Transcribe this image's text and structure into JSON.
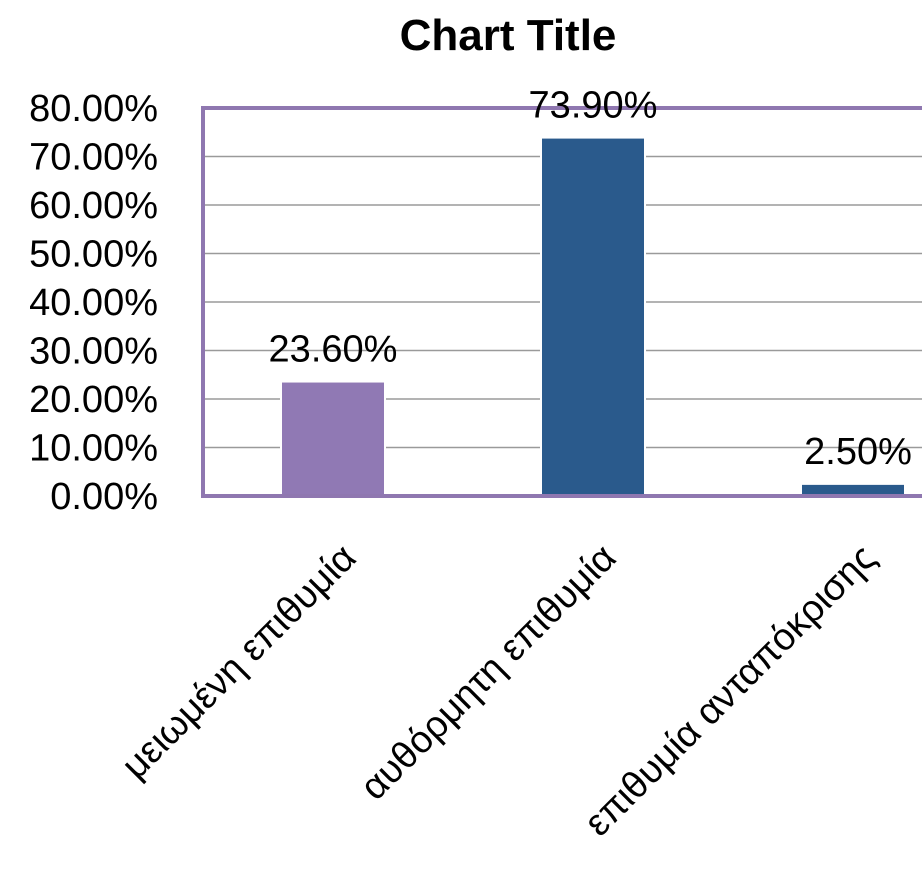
{
  "chart_data": {
    "type": "bar",
    "title": "Chart Title",
    "categories": [
      "μειωμένη επιθυμία",
      "αυθόρμητη επιθυμία",
      "επιθυμία ανταπόκρισης"
    ],
    "values": [
      23.6,
      73.9,
      2.5
    ],
    "data_labels": [
      "23.60%",
      "73.90%",
      "2.50%"
    ],
    "bar_colors": [
      "#9079b4",
      "#2a5a8c",
      "#2a5a8c"
    ],
    "ylim": [
      0,
      80
    ],
    "yticks": [
      0,
      10,
      20,
      30,
      40,
      50,
      60,
      70,
      80
    ],
    "ytick_labels": [
      "0.00%",
      "10.00%",
      "20.00%",
      "30.00%",
      "40.00%",
      "50.00%",
      "60.00%",
      "70.00%",
      "80.00%"
    ],
    "grid": true,
    "legend": "none"
  }
}
